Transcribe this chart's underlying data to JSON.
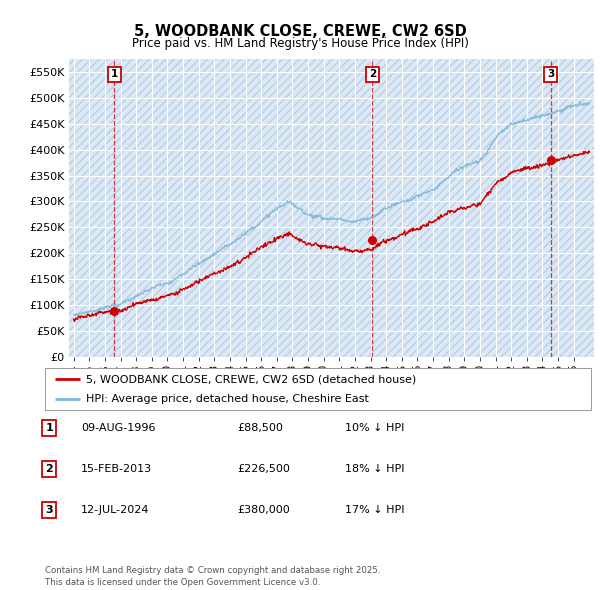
{
  "title": "5, WOODBANK CLOSE, CREWE, CW2 6SD",
  "subtitle": "Price paid vs. HM Land Registry's House Price Index (HPI)",
  "ylim": [
    0,
    575000
  ],
  "yticks": [
    0,
    50000,
    100000,
    150000,
    200000,
    250000,
    300000,
    350000,
    400000,
    450000,
    500000,
    550000
  ],
  "ytick_labels": [
    "£0",
    "£50K",
    "£100K",
    "£150K",
    "£200K",
    "£250K",
    "£300K",
    "£350K",
    "£400K",
    "£450K",
    "£500K",
    "£550K"
  ],
  "bg_color": "#dce9f5",
  "hatch_color": "#b8cfe8",
  "grid_color": "#ffffff",
  "sale_date_nums": [
    1996.6,
    2013.12,
    2024.53
  ],
  "sale_prices": [
    88500,
    226500,
    380000
  ],
  "sale_labels": [
    "1",
    "2",
    "3"
  ],
  "sale_color": "#cc0000",
  "hpi_color": "#7fb8d8",
  "legend_sale": "5, WOODBANK CLOSE, CREWE, CW2 6SD (detached house)",
  "legend_hpi": "HPI: Average price, detached house, Cheshire East",
  "table_rows": [
    [
      "1",
      "09-AUG-1996",
      "£88,500",
      "10% ↓ HPI"
    ],
    [
      "2",
      "15-FEB-2013",
      "£226,500",
      "18% ↓ HPI"
    ],
    [
      "3",
      "12-JUL-2024",
      "£380,000",
      "17% ↓ HPI"
    ]
  ],
  "footer": "Contains HM Land Registry data © Crown copyright and database right 2025.\nThis data is licensed under the Open Government Licence v3.0.",
  "xstart": 1993.7,
  "xend": 2027.3,
  "xtick_years": [
    1994,
    1995,
    1996,
    1997,
    1998,
    1999,
    2000,
    2001,
    2002,
    2003,
    2004,
    2005,
    2006,
    2007,
    2008,
    2009,
    2010,
    2011,
    2012,
    2013,
    2014,
    2015,
    2016,
    2017,
    2018,
    2019,
    2020,
    2021,
    2022,
    2023,
    2024,
    2025,
    2026
  ]
}
